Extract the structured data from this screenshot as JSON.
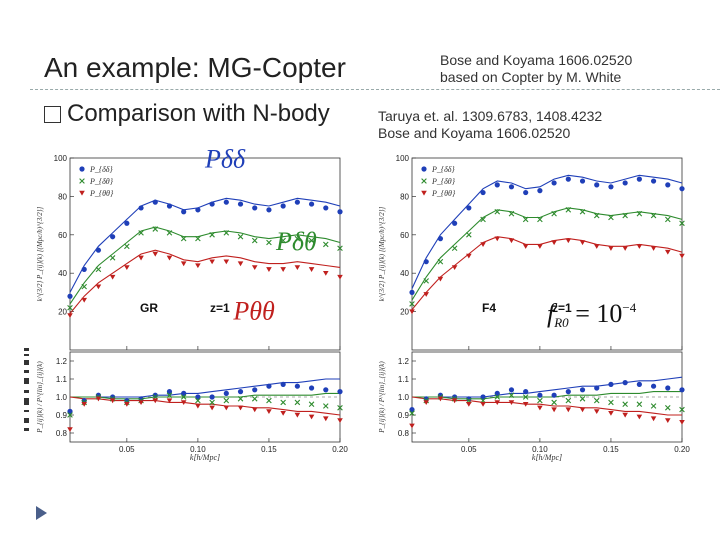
{
  "slide": {
    "title": "An example: MG-Copter",
    "bullet": "Comparison with N-body",
    "ref_top_line1": "Bose and Koyama 1606.02520",
    "ref_top_line2": "based on Copter by M. White",
    "ref_mid_line1": "Taruya et. al. 1309.6783, 1408.4232",
    "ref_mid_line2": "Bose and Koyama 1606.02520"
  },
  "colors": {
    "dd": "#1f3fb8",
    "dt": "#2e8b2e",
    "tt": "#c0201e",
    "accent": "#4a5f8a"
  },
  "chart_data": [
    {
      "type": "scatter",
      "title": "GR",
      "label_z": "z=1",
      "xlabel": "k[h/Mpc]",
      "ylabel": "k^{3/2} P_{ij}(k) [(Mpc/h)^{3/2}]",
      "ratio_ylabel": "P_{ij}(k) / P^{lin}_{ij}(k)",
      "xlim": [
        0.01,
        0.2
      ],
      "ylim": [
        0,
        100
      ],
      "ratio_ylim": [
        0.75,
        1.25
      ],
      "xticks": [
        "0.05",
        "0.10",
        "0.15",
        "0.20"
      ],
      "yticks": [
        "20",
        "40",
        "60",
        "80",
        "100"
      ],
      "ratio_yticks": [
        "0.8",
        "0.9",
        "1.0",
        "1.1",
        "1.2"
      ],
      "legend": [
        "P_{δδ}",
        "P_{δθ}",
        "P_{θθ}"
      ],
      "big_labels": [
        "Pδδ",
        "Pδθ",
        "Pθθ"
      ],
      "x": [
        0.01,
        0.02,
        0.03,
        0.04,
        0.05,
        0.06,
        0.07,
        0.08,
        0.09,
        0.1,
        0.11,
        0.12,
        0.13,
        0.14,
        0.15,
        0.16,
        0.17,
        0.18,
        0.19,
        0.2
      ],
      "series": [
        {
          "name": "P_dd",
          "marker": "dot",
          "values": [
            28,
            42,
            52,
            59,
            66,
            74,
            77,
            75,
            72,
            73,
            76,
            77,
            76,
            74,
            73,
            75,
            77,
            76,
            74,
            72
          ]
        },
        {
          "name": "P_dt",
          "marker": "x",
          "values": [
            22,
            33,
            42,
            48,
            54,
            61,
            63,
            61,
            58,
            58,
            60,
            61,
            59,
            57,
            56,
            57,
            58,
            57,
            55,
            53
          ]
        },
        {
          "name": "P_tt",
          "marker": "tri",
          "values": [
            18,
            26,
            33,
            38,
            43,
            48,
            50,
            48,
            45,
            44,
            46,
            46,
            45,
            43,
            42,
            42,
            43,
            42,
            40,
            38
          ]
        }
      ],
      "models": [
        {
          "name": "P_dd",
          "values": [
            30,
            44,
            54,
            61,
            68,
            75,
            78,
            76,
            73,
            74,
            77,
            79,
            78,
            76,
            75,
            77,
            79,
            78,
            77,
            75
          ]
        },
        {
          "name": "P_dt",
          "values": [
            24,
            35,
            44,
            50,
            56,
            62,
            64,
            62,
            59,
            59,
            61,
            62,
            61,
            59,
            58,
            59,
            60,
            59,
            58,
            56
          ]
        },
        {
          "name": "P_tt",
          "values": [
            19,
            28,
            35,
            40,
            45,
            50,
            52,
            50,
            47,
            46,
            48,
            49,
            48,
            46,
            45,
            45,
            46,
            45,
            44,
            43
          ]
        }
      ],
      "ratio_series": [
        {
          "name": "P_dd",
          "values": [
            0.92,
            0.98,
            1.01,
            1.0,
            0.98,
            0.99,
            1.01,
            1.03,
            1.02,
            1.0,
            1.0,
            1.02,
            1.03,
            1.04,
            1.06,
            1.07,
            1.06,
            1.05,
            1.04,
            1.03
          ]
        },
        {
          "name": "P_dt",
          "values": [
            0.9,
            0.97,
            1.0,
            0.99,
            0.97,
            0.98,
            1.0,
            1.01,
            1.0,
            0.98,
            0.97,
            0.98,
            0.99,
            0.99,
            0.98,
            0.97,
            0.97,
            0.96,
            0.95,
            0.94
          ]
        },
        {
          "name": "P_tt",
          "values": [
            0.82,
            0.96,
            0.99,
            0.98,
            0.96,
            0.97,
            0.98,
            0.98,
            0.97,
            0.95,
            0.94,
            0.94,
            0.94,
            0.93,
            0.92,
            0.91,
            0.9,
            0.89,
            0.88,
            0.87
          ]
        }
      ],
      "ratio_models": [
        {
          "name": "P_dd",
          "values": [
            1.0,
            1.0,
            1.0,
            1.0,
            1.0,
            1.0,
            1.01,
            1.01,
            1.02,
            1.02,
            1.03,
            1.04,
            1.05,
            1.06,
            1.07,
            1.08,
            1.08,
            1.09,
            1.1,
            1.1
          ]
        },
        {
          "name": "P_dt",
          "values": [
            1.0,
            1.0,
            1.0,
            0.99,
            0.99,
            0.99,
            1.0,
            1.0,
            1.0,
            1.0,
            1.0,
            1.0,
            1.0,
            1.01,
            1.01,
            1.01,
            1.01,
            1.01,
            1.02,
            1.02
          ]
        },
        {
          "name": "P_tt",
          "values": [
            1.0,
            0.99,
            0.99,
            0.98,
            0.98,
            0.98,
            0.98,
            0.97,
            0.97,
            0.96,
            0.96,
            0.95,
            0.95,
            0.94,
            0.94,
            0.93,
            0.92,
            0.92,
            0.91,
            0.9
          ]
        }
      ]
    },
    {
      "type": "scatter",
      "title": "F4",
      "label_z": "z=1",
      "annotation": "f_{R0} = 10^{-4}",
      "annotation_parts": [
        "f",
        "R0",
        " = 10",
        "−4"
      ],
      "xlabel": "k[h/Mpc]",
      "ylabel": "k^{3/2} P_{ij}(k) [(Mpc/h)^{3/2}]",
      "ratio_ylabel": "P_{ij}(k) / P^{lin}_{ij}(k)",
      "xlim": [
        0.01,
        0.2
      ],
      "ylim": [
        0,
        100
      ],
      "ratio_ylim": [
        0.75,
        1.25
      ],
      "xticks": [
        "0.05",
        "0.10",
        "0.15",
        "0.20"
      ],
      "yticks": [
        "20",
        "40",
        "60",
        "80",
        "100"
      ],
      "ratio_yticks": [
        "0.8",
        "0.9",
        "1.0",
        "1.1",
        "1.2"
      ],
      "legend": [
        "P_{δδ}",
        "P_{δθ}",
        "P_{θθ}"
      ],
      "x": [
        0.01,
        0.02,
        0.03,
        0.04,
        0.05,
        0.06,
        0.07,
        0.08,
        0.09,
        0.1,
        0.11,
        0.12,
        0.13,
        0.14,
        0.15,
        0.16,
        0.17,
        0.18,
        0.19,
        0.2
      ],
      "series": [
        {
          "name": "P_dd",
          "marker": "dot",
          "values": [
            30,
            46,
            58,
            66,
            74,
            82,
            86,
            85,
            82,
            83,
            87,
            89,
            88,
            86,
            85,
            87,
            89,
            88,
            86,
            84
          ]
        },
        {
          "name": "P_dt",
          "marker": "x",
          "values": [
            24,
            36,
            46,
            53,
            60,
            68,
            72,
            71,
            68,
            68,
            71,
            73,
            72,
            70,
            69,
            70,
            71,
            70,
            68,
            66
          ]
        },
        {
          "name": "P_tt",
          "marker": "tri",
          "values": [
            20,
            29,
            37,
            43,
            49,
            55,
            58,
            57,
            54,
            54,
            56,
            57,
            56,
            54,
            53,
            53,
            54,
            53,
            51,
            49
          ]
        }
      ],
      "models": [
        {
          "name": "P_dd",
          "values": [
            32,
            48,
            60,
            68,
            76,
            84,
            88,
            87,
            84,
            85,
            89,
            91,
            90,
            88,
            87,
            89,
            91,
            90,
            89,
            87
          ]
        },
        {
          "name": "P_dt",
          "values": [
            26,
            38,
            48,
            55,
            62,
            69,
            73,
            72,
            69,
            69,
            72,
            74,
            73,
            71,
            70,
            71,
            72,
            71,
            70,
            68
          ]
        },
        {
          "name": "P_tt",
          "values": [
            21,
            30,
            38,
            44,
            50,
            56,
            59,
            58,
            55,
            55,
            57,
            58,
            57,
            55,
            54,
            54,
            55,
            54,
            53,
            51
          ]
        }
      ],
      "ratio_series": [
        {
          "name": "P_dd",
          "values": [
            0.93,
            0.99,
            1.01,
            1.0,
            0.99,
            1.0,
            1.02,
            1.04,
            1.03,
            1.01,
            1.01,
            1.03,
            1.04,
            1.05,
            1.07,
            1.08,
            1.07,
            1.06,
            1.05,
            1.04
          ]
        },
        {
          "name": "P_dt",
          "values": [
            0.91,
            0.98,
            1.0,
            0.99,
            0.98,
            0.98,
            1.0,
            1.01,
            1.0,
            0.98,
            0.97,
            0.98,
            0.99,
            0.98,
            0.97,
            0.96,
            0.96,
            0.95,
            0.94,
            0.93
          ]
        },
        {
          "name": "P_tt",
          "values": [
            0.84,
            0.97,
            0.99,
            0.98,
            0.96,
            0.96,
            0.97,
            0.97,
            0.96,
            0.94,
            0.93,
            0.93,
            0.93,
            0.92,
            0.91,
            0.9,
            0.89,
            0.88,
            0.87,
            0.86
          ]
        }
      ],
      "ratio_models": [
        {
          "name": "P_dd",
          "values": [
            1.0,
            1.0,
            1.0,
            1.0,
            1.0,
            1.0,
            1.01,
            1.02,
            1.02,
            1.03,
            1.04,
            1.05,
            1.06,
            1.06,
            1.07,
            1.08,
            1.09,
            1.09,
            1.1,
            1.11
          ]
        },
        {
          "name": "P_dt",
          "values": [
            1.0,
            1.0,
            1.0,
            0.99,
            0.99,
            0.99,
            1.0,
            1.0,
            1.0,
            1.0,
            1.0,
            1.01,
            1.01,
            1.01,
            1.02,
            1.02,
            1.02,
            1.03,
            1.03,
            1.03
          ]
        },
        {
          "name": "P_tt",
          "values": [
            1.0,
            0.99,
            0.99,
            0.98,
            0.98,
            0.97,
            0.97,
            0.97,
            0.96,
            0.96,
            0.95,
            0.95,
            0.94,
            0.94,
            0.93,
            0.92,
            0.92,
            0.91,
            0.9,
            0.9
          ]
        }
      ]
    }
  ]
}
